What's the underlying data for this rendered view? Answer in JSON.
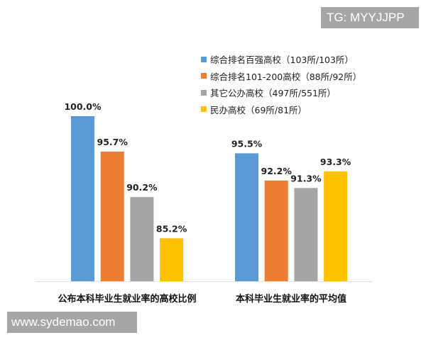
{
  "watermarks": {
    "top_right": "TG: MYYJJPP",
    "bottom_left": "www.sydemao.com"
  },
  "chart_data": {
    "type": "bar",
    "categories": [
      "公布本科毕业生就业率的高校比例",
      "本科毕业生就业率的平均值"
    ],
    "ylim": [
      80,
      100
    ],
    "grid": false,
    "legend_position": "top-right",
    "series": [
      {
        "name": "综合排名百强高校（103所/103所）",
        "color": "#5b9bd5",
        "values": [
          100.0,
          95.5
        ],
        "labels": [
          "100.0%",
          "95.5%"
        ]
      },
      {
        "name": "综合排名101-200高校（88所/92所）",
        "color": "#ed7d31",
        "values": [
          95.7,
          92.2
        ],
        "labels": [
          "95.7%",
          "92.2%"
        ]
      },
      {
        "name": "其它公办高校（497所/551所）",
        "color": "#a5a5a5",
        "values": [
          90.2,
          91.3
        ],
        "labels": [
          "90.2%",
          "91.3%"
        ]
      },
      {
        "name": "民办高校（69所/81所）",
        "color": "#ffc000",
        "values": [
          85.2,
          93.3
        ],
        "labels": [
          "85.2%",
          "93.3%"
        ]
      }
    ]
  }
}
